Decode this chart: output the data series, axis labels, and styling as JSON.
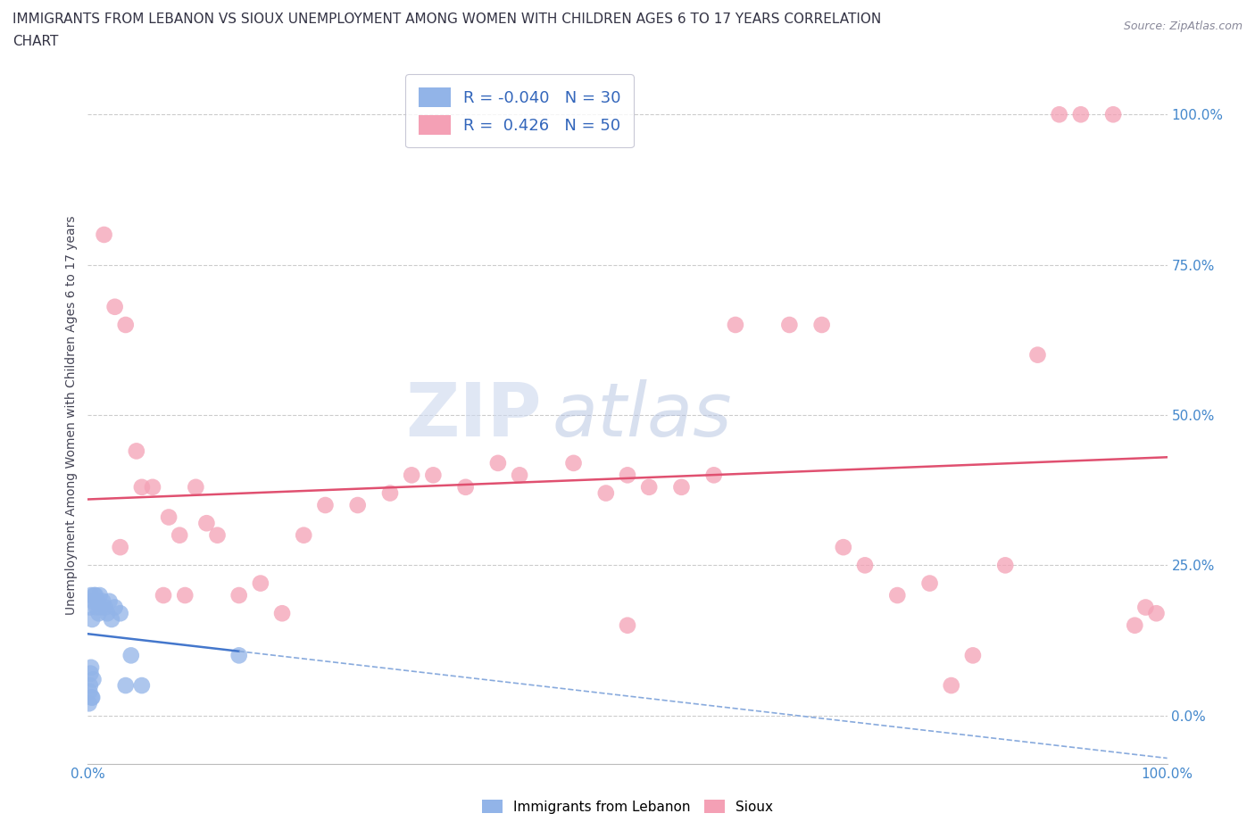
{
  "title_line1": "IMMIGRANTS FROM LEBANON VS SIOUX UNEMPLOYMENT AMONG WOMEN WITH CHILDREN AGES 6 TO 17 YEARS CORRELATION",
  "title_line2": "CHART",
  "source": "Source: ZipAtlas.com",
  "ylabel": "Unemployment Among Women with Children Ages 6 to 17 years",
  "ytick_values": [
    0,
    25,
    50,
    75,
    100
  ],
  "xlim": [
    0,
    100
  ],
  "ylim": [
    -8,
    108
  ],
  "legend_label1": "Immigrants from Lebanon",
  "legend_label2": "Sioux",
  "r1": -0.04,
  "n1": 30,
  "r2": 0.426,
  "n2": 50,
  "color1": "#92b4e8",
  "color2": "#f4a0b5",
  "trendline_color1_solid": "#4477cc",
  "trendline_color1_dash": "#88aadd",
  "trendline_color2": "#e05070",
  "watermark_zip": "ZIP",
  "watermark_atlas": "atlas",
  "background_color": "#ffffff",
  "grid_color": "#cccccc",
  "tick_color": "#4488cc",
  "lebanon_x": [
    0.2,
    0.3,
    0.4,
    0.5,
    0.6,
    0.7,
    0.8,
    0.9,
    1.0,
    1.1,
    1.2,
    1.4,
    1.6,
    1.8,
    2.0,
    2.2,
    2.5,
    3.0,
    3.5,
    4.0,
    5.0,
    0.1,
    0.2,
    0.3,
    0.4,
    0.5,
    0.15,
    0.25,
    0.35,
    14.0
  ],
  "lebanon_y": [
    18,
    20,
    16,
    19,
    20,
    20,
    18,
    19,
    17,
    20,
    18,
    19,
    18,
    17,
    19,
    16,
    18,
    17,
    5,
    10,
    5,
    2,
    5,
    8,
    3,
    6,
    4,
    7,
    3,
    10
  ],
  "sioux_x": [
    1.5,
    2.5,
    3.5,
    4.5,
    6.0,
    7.5,
    8.5,
    10.0,
    11.0,
    12.0,
    14.0,
    16.0,
    18.0,
    20.0,
    22.0,
    25.0,
    28.0,
    30.0,
    32.0,
    35.0,
    38.0,
    40.0,
    45.0,
    48.0,
    50.0,
    52.0,
    55.0,
    58.0,
    60.0,
    65.0,
    68.0,
    70.0,
    72.0,
    75.0,
    78.0,
    80.0,
    82.0,
    85.0,
    88.0,
    90.0,
    92.0,
    95.0,
    97.0,
    98.0,
    99.0,
    3.0,
    5.0,
    7.0,
    9.0,
    50.0
  ],
  "sioux_y": [
    80,
    68,
    65,
    44,
    38,
    33,
    30,
    38,
    32,
    30,
    20,
    22,
    17,
    30,
    35,
    35,
    37,
    40,
    40,
    38,
    42,
    40,
    42,
    37,
    40,
    38,
    38,
    40,
    65,
    65,
    65,
    28,
    25,
    20,
    22,
    5,
    10,
    25,
    60,
    100,
    100,
    100,
    15,
    18,
    17,
    28,
    38,
    20,
    20,
    15
  ]
}
